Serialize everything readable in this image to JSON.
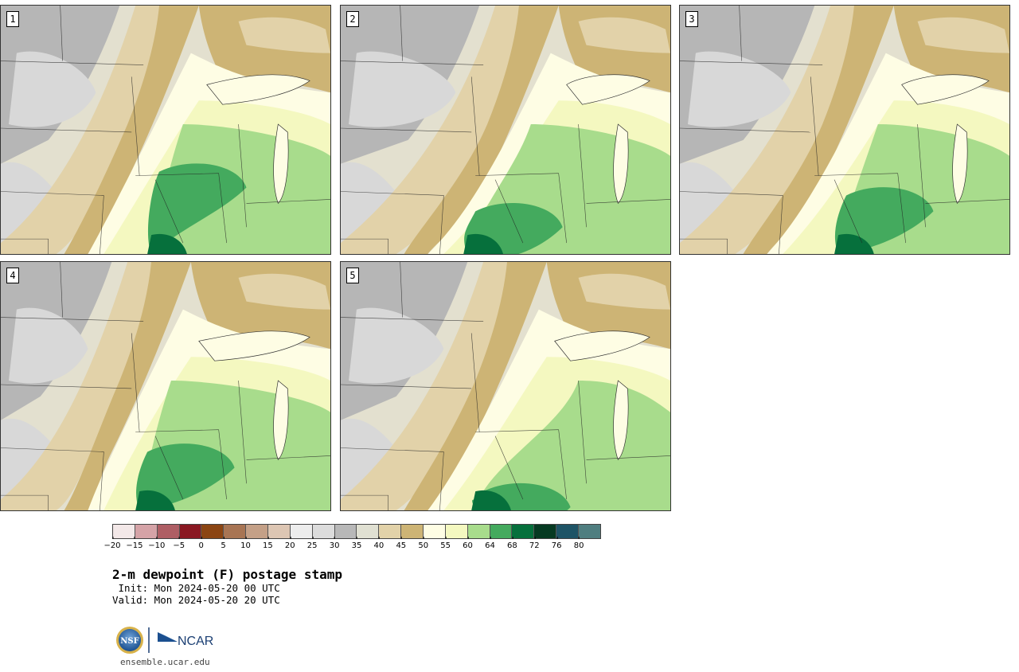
{
  "panels": [
    {
      "label": "1"
    },
    {
      "label": "2"
    },
    {
      "label": "3"
    },
    {
      "label": "4"
    },
    {
      "label": "5"
    }
  ],
  "colorbar": {
    "colors": [
      "#f3e8e8",
      "#d5a3a7",
      "#ae5e64",
      "#8a1822",
      "#8b4513",
      "#a87554",
      "#c4a087",
      "#ddc6b3",
      "#ededed",
      "#dcdcdc",
      "#b8b8b8",
      "#e0e0d2",
      "#e2d2a9",
      "#cdb475",
      "#fefde4",
      "#f4f8c0",
      "#a8dc8c",
      "#44aa5e",
      "#06703c",
      "#063a22",
      "#1e5466",
      "#4f7e80"
    ],
    "tick_labels": [
      "−20",
      "−15",
      "−10",
      "−5",
      "0",
      "5",
      "10",
      "15",
      "20",
      "25",
      "30",
      "35",
      "40",
      "45",
      "50",
      "55",
      "60",
      "64",
      "68",
      "72",
      "76",
      "80"
    ]
  },
  "title": "2-m dewpoint (F) postage stamp",
  "init_line": " Init: Mon 2024-05-20 00 UTC",
  "valid_line": "Valid: Mon 2024-05-20 20 UTC",
  "logo": {
    "nsf": "NSF",
    "ncar": "NCAR"
  },
  "website": "ensemble.ucar.edu"
}
